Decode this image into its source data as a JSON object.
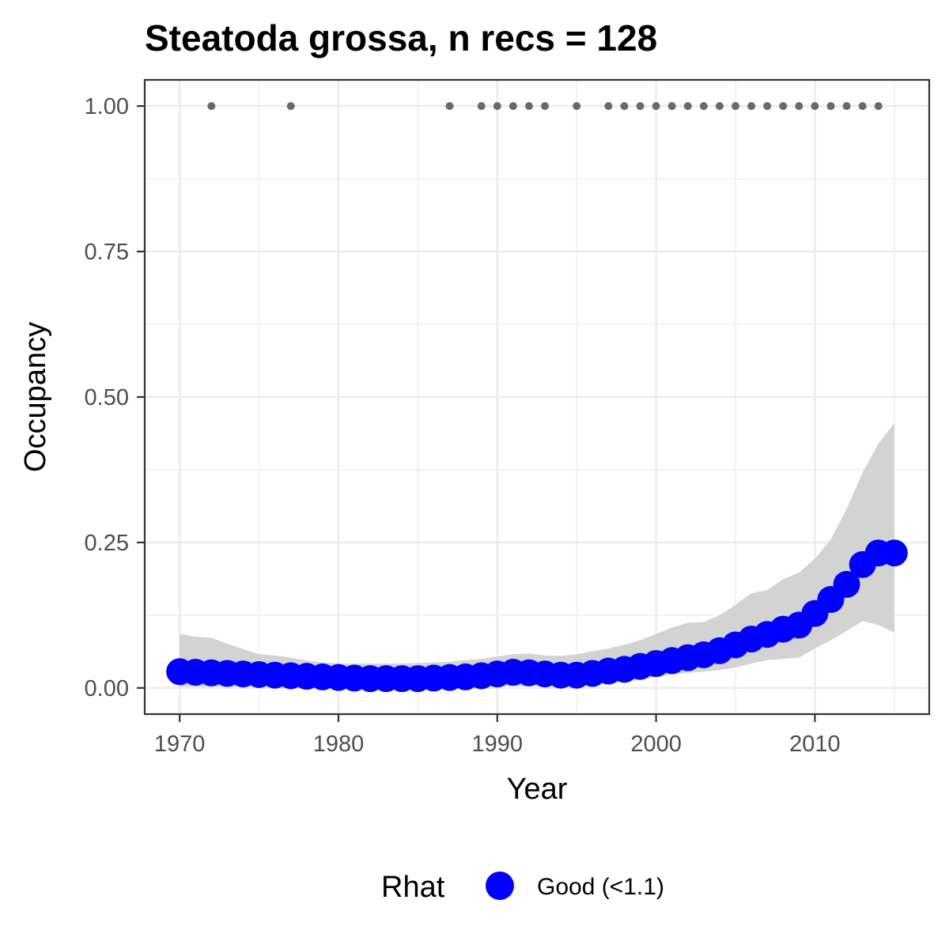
{
  "chart_data": {
    "type": "scatter",
    "title": "Steatoda grossa, n recs = 128",
    "xlabel": "Year",
    "ylabel": "Occupancy",
    "xlim": [
      1967.8,
      1917.2
    ],
    "ylim": [
      -0.045,
      1.045
    ],
    "x_ticks": [
      1970,
      1980,
      1990,
      2000,
      2010
    ],
    "x_tick_labels": [
      "1970",
      "1980",
      "1990",
      "2000",
      "2010"
    ],
    "y_ticks": [
      0,
      0.25,
      0.5,
      0.75,
      1
    ],
    "y_tick_labels": [
      "0.00",
      "0.25",
      "0.50",
      "0.75",
      "1.00"
    ],
    "grid": true,
    "legend": {
      "title": "Rhat",
      "placement": "bottom",
      "entries": [
        {
          "label": "Good (<1.1)",
          "color": "#0000ff"
        }
      ]
    },
    "colors": {
      "estimate": "#0000ff",
      "credible_interval": "#d3d3d3",
      "records": "#696969",
      "grid": "#ebebeb",
      "panel_border": "#333333"
    },
    "series": [
      {
        "kind": "credible_interval",
        "x": [
          1970,
          1971,
          1972,
          1973,
          1974,
          1975,
          1976,
          1977,
          1978,
          1979,
          1980,
          1981,
          1982,
          1983,
          1984,
          1985,
          1986,
          1987,
          1988,
          1989,
          1990,
          1991,
          1992,
          1993,
          1994,
          1995,
          1996,
          1997,
          1998,
          1999,
          2000,
          2001,
          2002,
          2003,
          2004,
          2005,
          2006,
          2007,
          2008,
          2009,
          2010,
          2011,
          2012,
          2013,
          2014,
          2015
        ],
        "lower": [
          0.002,
          0.002,
          0.002,
          0.002,
          0.002,
          0.002,
          0.002,
          0.002,
          0.002,
          0.002,
          0.002,
          0.002,
          0.002,
          0.002,
          0.002,
          0.002,
          0.002,
          0.002,
          0.002,
          0.002,
          0.003,
          0.003,
          0.003,
          0.004,
          0.004,
          0.005,
          0.007,
          0.009,
          0.012,
          0.015,
          0.019,
          0.023,
          0.026,
          0.028,
          0.031,
          0.035,
          0.042,
          0.048,
          0.05,
          0.052,
          0.068,
          0.082,
          0.098,
          0.115,
          0.108,
          0.095
        ],
        "upper": [
          0.093,
          0.088,
          0.086,
          0.076,
          0.067,
          0.058,
          0.056,
          0.052,
          0.047,
          0.044,
          0.042,
          0.042,
          0.042,
          0.042,
          0.042,
          0.043,
          0.044,
          0.045,
          0.048,
          0.05,
          0.054,
          0.058,
          0.059,
          0.056,
          0.055,
          0.058,
          0.063,
          0.068,
          0.074,
          0.082,
          0.093,
          0.104,
          0.112,
          0.113,
          0.125,
          0.143,
          0.163,
          0.168,
          0.187,
          0.198,
          0.222,
          0.255,
          0.308,
          0.37,
          0.42,
          0.455
        ]
      },
      {
        "kind": "estimate",
        "name": "Good (<1.1)",
        "x": [
          1970,
          1971,
          1972,
          1973,
          1974,
          1975,
          1976,
          1977,
          1978,
          1979,
          1980,
          1981,
          1982,
          1983,
          1984,
          1985,
          1986,
          1987,
          1988,
          1989,
          1990,
          1991,
          1992,
          1993,
          1994,
          1995,
          1996,
          1997,
          1998,
          1999,
          2000,
          2001,
          2002,
          2003,
          2004,
          2005,
          2006,
          2007,
          2008,
          2009,
          2010,
          2011,
          2012,
          2013,
          2014,
          2015
        ],
        "values": [
          0.028,
          0.027,
          0.026,
          0.025,
          0.024,
          0.023,
          0.022,
          0.021,
          0.02,
          0.019,
          0.018,
          0.017,
          0.016,
          0.016,
          0.016,
          0.016,
          0.017,
          0.018,
          0.019,
          0.021,
          0.024,
          0.027,
          0.026,
          0.024,
          0.022,
          0.022,
          0.025,
          0.029,
          0.032,
          0.037,
          0.042,
          0.047,
          0.052,
          0.057,
          0.064,
          0.074,
          0.084,
          0.092,
          0.101,
          0.108,
          0.128,
          0.152,
          0.178,
          0.212,
          0.232,
          0.232
        ]
      },
      {
        "kind": "records",
        "x": [
          1972,
          1977,
          1987,
          1989,
          1990,
          1991,
          1992,
          1993,
          1995,
          1997,
          1998,
          1999,
          2000,
          2001,
          2002,
          2003,
          2004,
          2005,
          2006,
          2007,
          2008,
          2009,
          2010,
          2011,
          2012,
          2013,
          2014
        ],
        "values": [
          1,
          1,
          1,
          1,
          1,
          1,
          1,
          1,
          1,
          1,
          1,
          1,
          1,
          1,
          1,
          1,
          1,
          1,
          1,
          1,
          1,
          1,
          1,
          1,
          1,
          1,
          1
        ]
      }
    ]
  }
}
